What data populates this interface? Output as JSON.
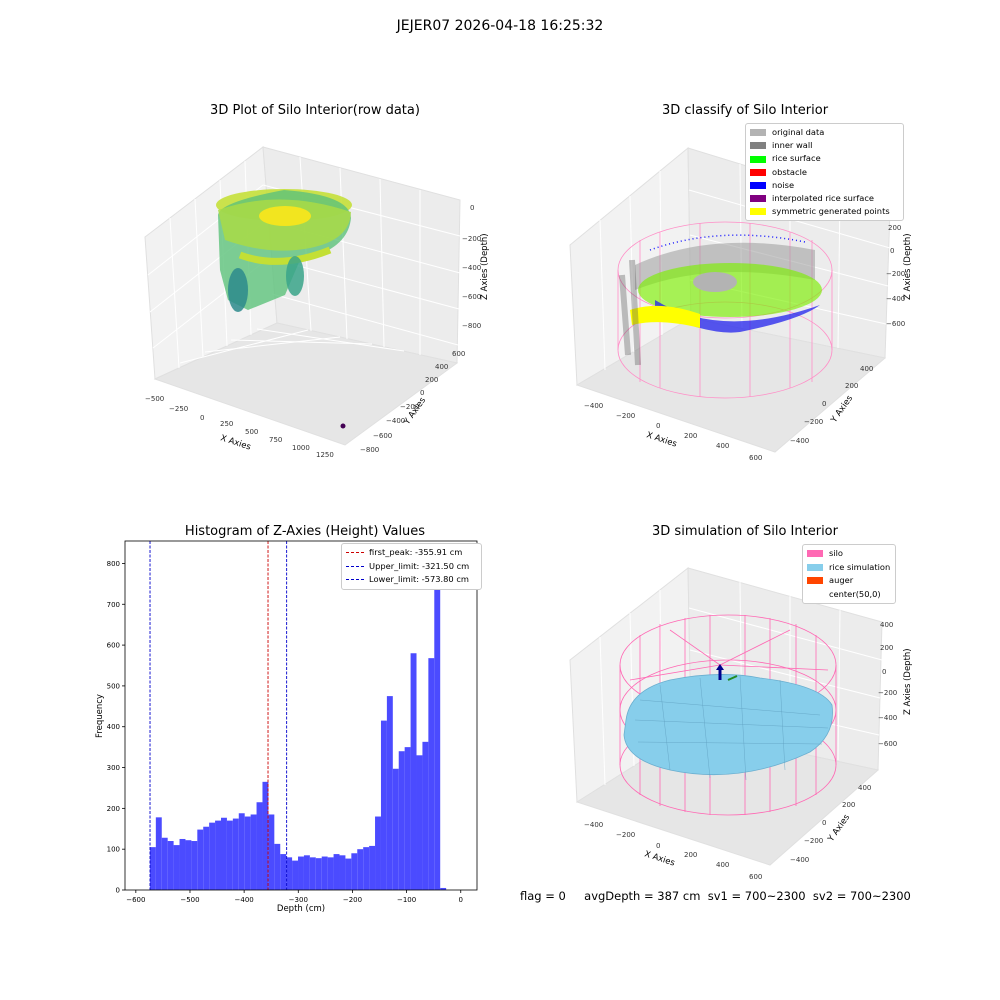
{
  "suptitle": "JEJER07 2026-04-18 16:25:32",
  "colors": {
    "hist_bar": "#4b4bff",
    "first_peak": "#cc0000",
    "limit": "#0000cc",
    "silo": "#ff69b4",
    "rice_sim": "#87ceeb"
  },
  "chart_data": [
    {
      "type": "scatter",
      "projection": "3d",
      "title": "3D Plot of Silo Interior(row data)",
      "xlabel": "X Axies",
      "ylabel": "Y Axies",
      "zlabel": "Z Axies (Depth)",
      "xticks": [
        "−500",
        "−250",
        "0",
        "250",
        "500",
        "750",
        "1000",
        "1250"
      ],
      "yticks": [
        "−800",
        "−600",
        "−400",
        "−200",
        "0",
        "200",
        "400",
        "600"
      ],
      "zticks": [
        "−800",
        "−600",
        "−400",
        "−200",
        "0"
      ],
      "colormap": "viridis"
    },
    {
      "type": "scatter",
      "projection": "3d",
      "title": "3D classify of Silo Interior",
      "xlabel": "X Axies",
      "ylabel": "Y Axies",
      "zlabel": "Z Axies (Depth)",
      "xticks": [
        "−400",
        "−200",
        "0",
        "200",
        "400",
        "600"
      ],
      "yticks": [
        "−400",
        "−200",
        "0",
        "200",
        "400"
      ],
      "zticks": [
        "−600",
        "−400",
        "−200",
        "0",
        "200"
      ],
      "legend_position": "upper right",
      "legend": [
        {
          "label": "original data",
          "color": "#b3b3b3"
        },
        {
          "label": "inner wall",
          "color": "#808080"
        },
        {
          "label": "rice surface",
          "color": "#00ff00"
        },
        {
          "label": "obstacle",
          "color": "#ff0000"
        },
        {
          "label": "noise",
          "color": "#0000ff"
        },
        {
          "label": "interpolated rice surface",
          "color": "#800080"
        },
        {
          "label": "symmetric generated points",
          "color": "#ffff00"
        }
      ]
    },
    {
      "type": "bar",
      "title": "Histogram of Z-Axies (Height) Values",
      "xlabel": "Depth (cm)",
      "ylabel": "Frequency",
      "xlim": [
        -620,
        30
      ],
      "ylim": [
        0,
        855
      ],
      "xticks": [
        "−600",
        "−500",
        "−400",
        "−300",
        "−200",
        "−100",
        "0"
      ],
      "yticks": [
        "0",
        "100",
        "200",
        "300",
        "400",
        "500",
        "600",
        "700",
        "800"
      ],
      "bin_start": -574,
      "bin_width": 10.94,
      "values": [
        105,
        178,
        128,
        120,
        110,
        125,
        122,
        120,
        148,
        155,
        165,
        170,
        177,
        170,
        175,
        188,
        180,
        185,
        215,
        265,
        185,
        113,
        88,
        80,
        72,
        82,
        85,
        80,
        78,
        82,
        80,
        88,
        85,
        77,
        90,
        100,
        105,
        108,
        180,
        415,
        475,
        297,
        340,
        350,
        580,
        330,
        363,
        568,
        810,
        5
      ],
      "lines": [
        {
          "label": "first_peak: -355.91 cm",
          "x": -355.91,
          "color": "#cc0000"
        },
        {
          "label": "Upper_limit: -321.50 cm",
          "x": -321.5,
          "color": "#0000cc"
        },
        {
          "label": "Lower_limit: -573.80 cm",
          "x": -573.8,
          "color": "#0000cc"
        }
      ],
      "legend_position": "upper right"
    },
    {
      "type": "surface",
      "projection": "3d",
      "title": "3D simulation of Silo Interior",
      "xlabel": "X Axies",
      "ylabel": "Y Axies",
      "zlabel": "Z Axies (Depth)",
      "xticks": [
        "−400",
        "−200",
        "0",
        "200",
        "400",
        "600"
      ],
      "yticks": [
        "−400",
        "−200",
        "0",
        "200",
        "400"
      ],
      "zticks": [
        "−600",
        "−400",
        "−200",
        "0",
        "200",
        "400"
      ],
      "legend_position": "upper right",
      "legend": [
        {
          "label": "silo",
          "color": "#ff69b4"
        },
        {
          "label": "rice simulation",
          "color": "#87ceeb"
        },
        {
          "label": "auger",
          "color": "#ff4500"
        },
        {
          "label": "center(50,0)",
          "color": "none"
        }
      ]
    }
  ],
  "footer": {
    "flag": "flag = 0",
    "avg": "avgDepth = 387 cm  sv1 = 700~2300  sv2 = 700~2300"
  }
}
